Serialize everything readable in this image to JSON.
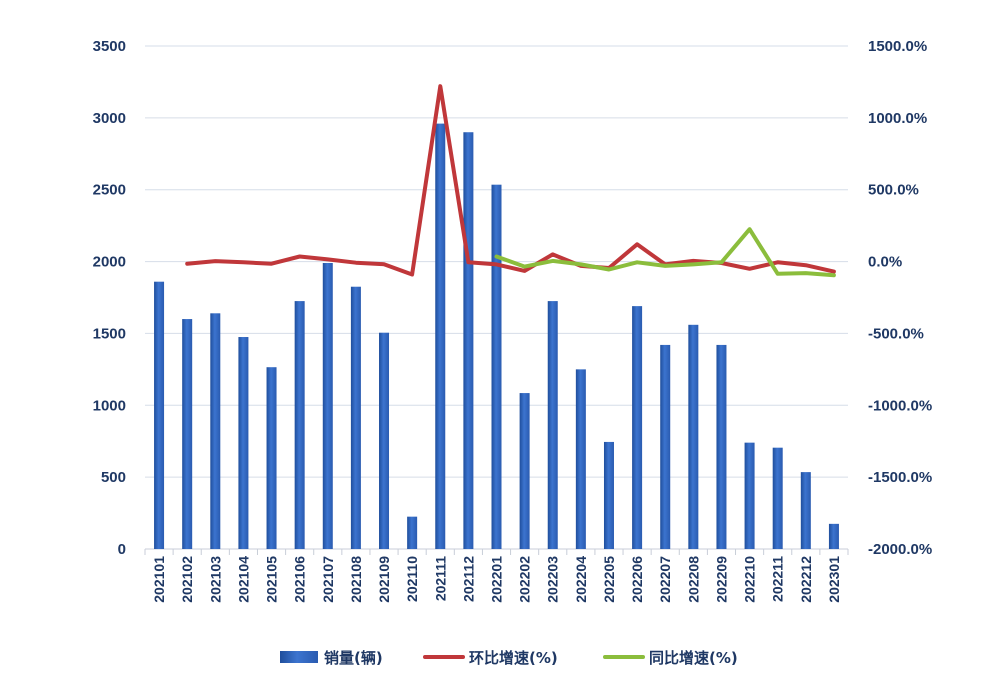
{
  "chart_data": {
    "type": "bar",
    "categories": [
      "202101",
      "202102",
      "202103",
      "202104",
      "202105",
      "202106",
      "202107",
      "202108",
      "202109",
      "202110",
      "202111",
      "202112",
      "202201",
      "202202",
      "202203",
      "202204",
      "202205",
      "202206",
      "202207",
      "202208",
      "202209",
      "202210",
      "202211",
      "202212",
      "202301"
    ],
    "series": [
      {
        "name": "销量(辆)",
        "type": "bar",
        "axis": "left",
        "color": "#2e5fb6",
        "values": [
          1860,
          1600,
          1640,
          1475,
          1265,
          1725,
          1990,
          1825,
          1505,
          225,
          2960,
          2900,
          2535,
          1085,
          1725,
          1250,
          745,
          1690,
          1420,
          1560,
          1420,
          740,
          705,
          535,
          175
        ]
      },
      {
        "name": "环比增速(%)",
        "type": "line",
        "axis": "right",
        "color": "#c0373a",
        "values": [
          null,
          -15,
          3,
          -5,
          -15,
          35,
          15,
          -8,
          -18,
          -90,
          1220,
          -5,
          -20,
          -65,
          50,
          -30,
          -45,
          120,
          -20,
          5,
          -10,
          -50,
          -5,
          -25,
          -70
        ]
      },
      {
        "name": "同比增速(%)",
        "type": "line",
        "axis": "right",
        "color": "#8bbd3c",
        "values": [
          null,
          null,
          null,
          null,
          null,
          null,
          null,
          null,
          null,
          null,
          null,
          null,
          35,
          -35,
          5,
          -20,
          -55,
          -5,
          -30,
          -20,
          -5,
          225,
          -85,
          -80,
          -95
        ]
      }
    ],
    "yleft": {
      "min": 0,
      "max": 3500,
      "ticks": [
        "0",
        "500",
        "1000",
        "1500",
        "2000",
        "2500",
        "3000",
        "3500"
      ]
    },
    "yright": {
      "min": -2000,
      "max": 1500,
      "ticks": [
        "-2000.0%",
        "-1500.0%",
        "-1000.0%",
        "-500.0%",
        "0.0%",
        "500.0%",
        "1000.0%",
        "1500.0%"
      ]
    },
    "grid": true,
    "legend": {
      "position": "bottom"
    }
  }
}
